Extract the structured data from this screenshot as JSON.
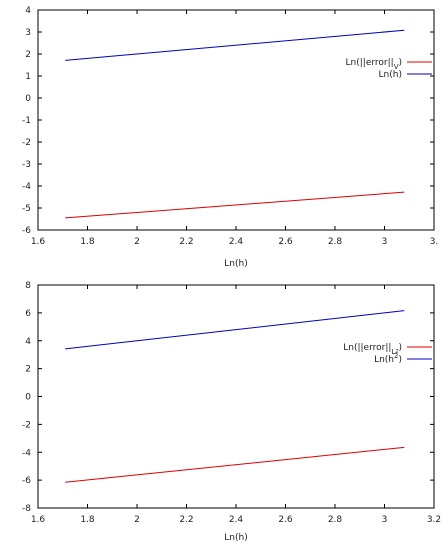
{
  "chart_data": [
    {
      "type": "line",
      "xlabel": "Ln(h)",
      "ylabel": "",
      "xlim": [
        1.6,
        3.2
      ],
      "ylim": [
        -6,
        4
      ],
      "xticks": [
        "1.6",
        "1.8",
        "2",
        "2.2",
        "2.4",
        "2.6",
        "2.8",
        "3",
        "3."
      ],
      "yticks": [
        "-6",
        "-5",
        "-4",
        "-3",
        "-2",
        "-1",
        "0",
        "1",
        "2",
        "3",
        "4"
      ],
      "legend_position": "right",
      "series": [
        {
          "name": "Ln(||error||",
          "sub": "V",
          "name_tail": ")",
          "color": "#e00000",
          "x": [
            1.71,
            3.08
          ],
          "y": [
            -5.45,
            -4.28
          ]
        },
        {
          "name": "Ln(h)",
          "sub": "",
          "name_tail": "",
          "color": "#0000c0",
          "x": [
            1.71,
            3.08
          ],
          "y": [
            1.71,
            3.08
          ]
        }
      ]
    },
    {
      "type": "line",
      "xlabel": "Ln(h)",
      "ylabel": "",
      "xlim": [
        1.6,
        3.2
      ],
      "ylim": [
        -8,
        8
      ],
      "xticks": [
        "1.6",
        "1.8",
        "2",
        "2.2",
        "2.4",
        "2.6",
        "2.8",
        "3",
        "3.2"
      ],
      "yticks": [
        "-8",
        "-6",
        "-4",
        "-2",
        "0",
        "2",
        "4",
        "6",
        "8"
      ],
      "legend_position": "right",
      "series": [
        {
          "name": "Ln(||error||",
          "sub": "L",
          "sup_after_sub": "2",
          "name_tail": ")",
          "color": "#e00000",
          "x": [
            1.71,
            3.08
          ],
          "y": [
            -6.15,
            -3.65
          ]
        },
        {
          "name": "Ln(h",
          "sub": "",
          "sup": "2",
          "name_tail": ")",
          "color": "#0000c0",
          "x": [
            1.71,
            3.08
          ],
          "y": [
            3.42,
            6.16
          ]
        }
      ]
    }
  ]
}
